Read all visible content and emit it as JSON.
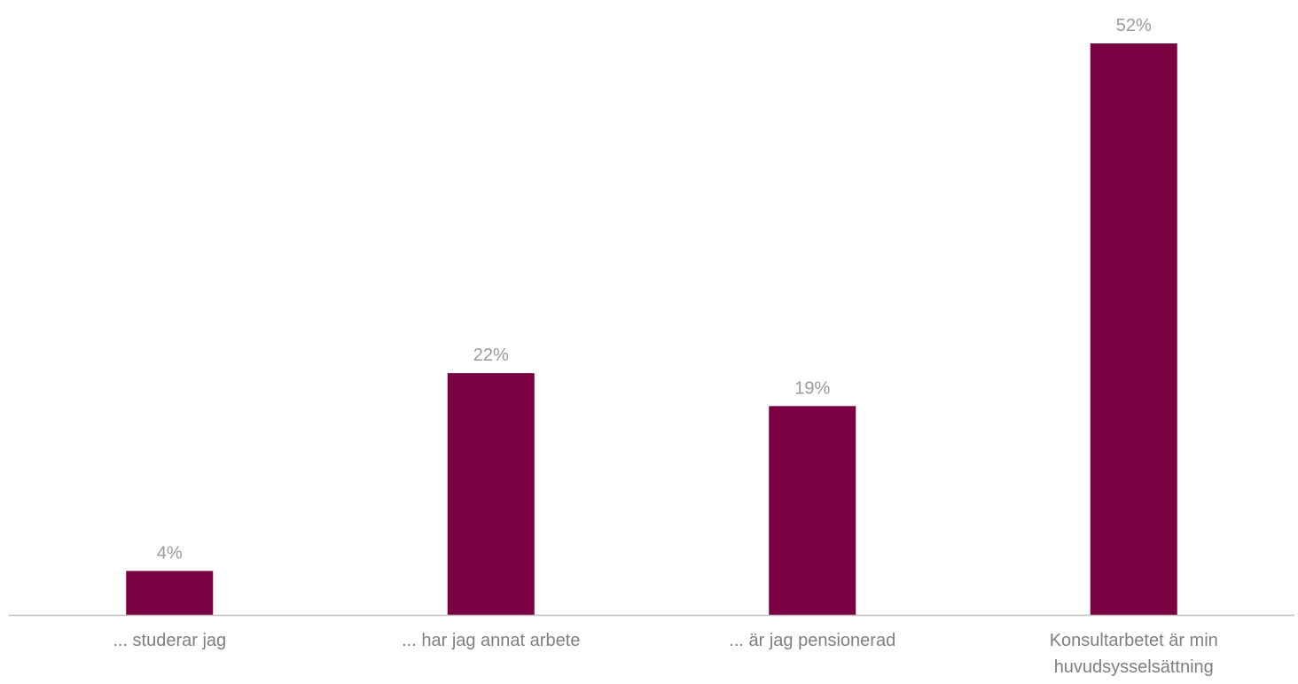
{
  "chart_data": {
    "type": "bar",
    "categories": [
      [
        "... studerar jag"
      ],
      [
        "... har jag annat arbete"
      ],
      [
        "... är jag pensionerad"
      ],
      [
        "Konsultarbetet är min",
        "huvudsysselsättning"
      ]
    ],
    "values": [
      4,
      22,
      19,
      52
    ],
    "data_labels": [
      "4%",
      "22%",
      "19%",
      "52%"
    ],
    "title": "",
    "xlabel": "",
    "ylabel": "",
    "ylim": [
      0,
      52
    ],
    "grid": false,
    "legend": "none",
    "colors": {
      "bar": "#7b0041",
      "axis": "#bfbfbf",
      "data_label": "#9a9a9a",
      "category_label": "#7f7f7f"
    }
  }
}
